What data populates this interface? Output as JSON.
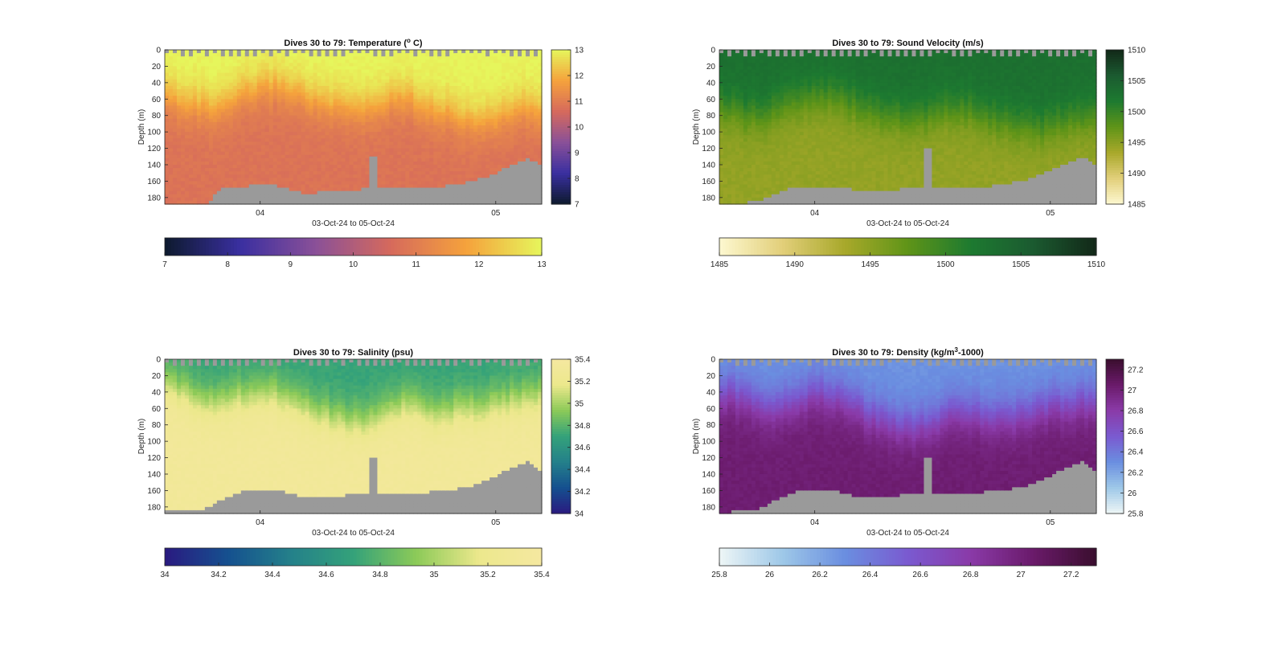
{
  "figure": {
    "panels": [
      {
        "id": "temperature",
        "title": "Dives 30 to 79: Temperature (",
        "title_sup": "o",
        "title_end": " C)",
        "ylabel": "Depth (m)",
        "xlabel": "03-Oct-24 to 05-Oct-24",
        "colorbar_ticks": [
          "7",
          "8",
          "9",
          "10",
          "11",
          "12",
          "13"
        ],
        "hbar_ticks": [
          "7",
          "8",
          "9",
          "10",
          "11",
          "12",
          "13"
        ]
      },
      {
        "id": "sound_velocity",
        "title": "Dives 30 to 79: Sound Velocity (m/s)",
        "title_sup": "",
        "title_end": "",
        "ylabel": "Depth (m)",
        "xlabel": "03-Oct-24 to 05-Oct-24",
        "colorbar_ticks": [
          "1485",
          "1490",
          "1495",
          "1500",
          "1505",
          "1510"
        ],
        "hbar_ticks": [
          "1485",
          "1490",
          "1495",
          "1500",
          "1505",
          "1510"
        ]
      },
      {
        "id": "salinity",
        "title": "Dives 30 to 79: Salinity (psu)",
        "title_sup": "",
        "title_end": "",
        "ylabel": "Depth (m)",
        "xlabel": "03-Oct-24 to 05-Oct-24",
        "colorbar_ticks": [
          "34",
          "34.2",
          "34.4",
          "34.6",
          "34.8",
          "35",
          "35.2",
          "35.4"
        ],
        "hbar_ticks": [
          "34",
          "34.2",
          "34.4",
          "34.6",
          "34.8",
          "35",
          "35.2",
          "35.4"
        ]
      },
      {
        "id": "density",
        "title": "Dives 30 to 79: Density (kg/m",
        "title_sup": "3",
        "title_end": "-1000)",
        "ylabel": "Depth (m)",
        "xlabel": "03-Oct-24 to 05-Oct-24",
        "colorbar_ticks": [
          "25.8",
          "26",
          "26.2",
          "26.4",
          "26.6",
          "26.8",
          "27",
          "27.2"
        ],
        "hbar_ticks": [
          "25.8",
          "26",
          "26.2",
          "26.4",
          "26.6",
          "26.8",
          "27",
          "27.2"
        ]
      }
    ]
  },
  "chart_data": [
    {
      "type": "heatmap",
      "title": "Dives 30 to 79: Temperature (o C)",
      "xlabel": "03-Oct-24 to 05-Oct-24",
      "ylabel": "Depth (m)",
      "x_ticks": [
        "04",
        "05"
      ],
      "y_ticks": [
        0,
        20,
        40,
        60,
        80,
        100,
        120,
        140,
        160,
        180
      ],
      "ylim": [
        188,
        0
      ],
      "y_reversed": true,
      "clim": [
        7,
        13
      ],
      "colormap": [
        "#0d1a2e",
        "#3a2fa0",
        "#8a5098",
        "#d66a5c",
        "#f5a23c",
        "#e6f65c"
      ],
      "surface_value": 13,
      "deep_value": 10.8,
      "thermocline_depth": [
        55,
        60,
        65,
        70,
        72,
        60,
        50,
        45,
        42,
        48,
        55,
        62,
        68,
        70,
        72,
        68,
        60,
        55,
        62,
        70,
        75,
        80,
        85,
        88,
        80,
        72,
        70,
        75
      ],
      "bottom_depth": [
        188,
        188,
        188,
        188,
        170,
        168,
        166,
        165,
        166,
        170,
        175,
        174,
        172,
        171,
        170,
        168,
        167,
        166,
        167,
        168,
        166,
        164,
        160,
        155,
        148,
        140,
        132,
        142
      ]
    },
    {
      "type": "heatmap",
      "title": "Dives 30 to 79: Sound Velocity (m/s)",
      "xlabel": "03-Oct-24 to 05-Oct-24",
      "ylabel": "Depth (m)",
      "x_ticks": [
        "04",
        "05"
      ],
      "y_ticks": [
        0,
        20,
        40,
        60,
        80,
        100,
        120,
        140,
        160,
        180
      ],
      "ylim": [
        188,
        0
      ],
      "y_reversed": true,
      "clim": [
        1485,
        1510
      ],
      "colormap": [
        "#fdf8d0",
        "#e2cf7a",
        "#a8a82a",
        "#5f9418",
        "#1d7a30",
        "#1b5a30",
        "#122818"
      ],
      "surface_value": 1503,
      "deep_value": 1494.5,
      "thermocline_depth": [
        70,
        75,
        80,
        82,
        75,
        65,
        58,
        55,
        56,
        62,
        70,
        75,
        80,
        82,
        85,
        82,
        75,
        70,
        75,
        82,
        86,
        90,
        95,
        98,
        92,
        85,
        82,
        85
      ],
      "bottom_depth": [
        188,
        188,
        186,
        184,
        176,
        170,
        168,
        166,
        166,
        168,
        172,
        172,
        170,
        170,
        168,
        168,
        166,
        166,
        167,
        167,
        165,
        162,
        158,
        152,
        145,
        138,
        130,
        140
      ]
    },
    {
      "type": "heatmap",
      "title": "Dives 30 to 79: Salinity (psu)",
      "xlabel": "03-Oct-24 to 05-Oct-24",
      "ylabel": "Depth (m)",
      "x_ticks": [
        "04",
        "05"
      ],
      "y_ticks": [
        0,
        20,
        40,
        60,
        80,
        100,
        120,
        140,
        160,
        180
      ],
      "ylim": [
        188,
        0
      ],
      "y_reversed": true,
      "clim": [
        34,
        35.4
      ],
      "colormap": [
        "#2a1a80",
        "#15508f",
        "#24808a",
        "#34a27a",
        "#8cca58",
        "#ece88c",
        "#f5e8a0"
      ],
      "surface_value": 34.7,
      "deep_value": 35.32,
      "thermocline_depth": [
        30,
        35,
        42,
        48,
        50,
        45,
        40,
        38,
        40,
        45,
        55,
        62,
        70,
        74,
        75,
        70,
        62,
        55,
        58,
        60,
        62,
        60,
        58,
        55,
        52,
        48,
        45,
        42
      ],
      "bottom_depth": [
        184,
        184,
        182,
        182,
        172,
        164,
        160,
        158,
        160,
        164,
        168,
        168,
        166,
        166,
        165,
        164,
        162,
        162,
        162,
        162,
        160,
        158,
        154,
        148,
        140,
        132,
        124,
        138
      ]
    },
    {
      "type": "heatmap",
      "title": "Dives 30 to 79: Density (kg/m3-1000)",
      "xlabel": "03-Oct-24 to 05-Oct-24",
      "ylabel": "Depth (m)",
      "x_ticks": [
        "04",
        "05"
      ],
      "y_ticks": [
        0,
        20,
        40,
        60,
        80,
        100,
        120,
        140,
        160,
        180
      ],
      "ylim": [
        188,
        0
      ],
      "y_reversed": true,
      "clim": [
        25.8,
        27.3
      ],
      "colormap": [
        "#eef6f6",
        "#9ec8e8",
        "#6a8ee0",
        "#7a5ad0",
        "#8a3aa8",
        "#6a1a6a",
        "#3a0e2e"
      ],
      "surface_value": 26.28,
      "deep_value": 27.02,
      "thermocline_depth": [
        40,
        44,
        50,
        55,
        58,
        52,
        46,
        42,
        44,
        50,
        60,
        68,
        76,
        80,
        82,
        78,
        70,
        62,
        65,
        70,
        72,
        70,
        66,
        62,
        58,
        55,
        52,
        50
      ],
      "bottom_depth": [
        186,
        186,
        184,
        182,
        172,
        164,
        160,
        158,
        160,
        164,
        168,
        168,
        166,
        166,
        165,
        164,
        162,
        162,
        162,
        162,
        160,
        158,
        154,
        148,
        140,
        132,
        124,
        138
      ]
    }
  ]
}
